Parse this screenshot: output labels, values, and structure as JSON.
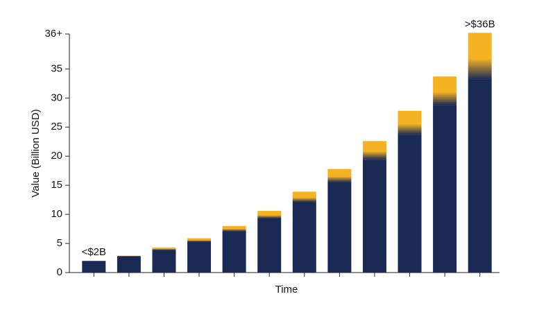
{
  "chart_data": {
    "type": "bar",
    "stacked": true,
    "xlabel": "Time",
    "ylabel": "Value (Billion USD)",
    "categories": [
      null,
      null,
      null,
      null,
      null,
      null,
      null,
      null,
      null,
      null,
      null,
      null
    ],
    "series": [
      {
        "color": "#1b2a55",
        "values": [
          2.0,
          2.8,
          3.9,
          5.3,
          7.1,
          9.3,
          12.1,
          15.5,
          19.4,
          23.7,
          28.8,
          33.2
        ]
      },
      {
        "color": "#f5b324",
        "values": [
          0,
          0.1,
          0.4,
          0.6,
          0.9,
          1.3,
          1.8,
          2.3,
          3.2,
          4.1,
          4.9,
          8.0
        ]
      }
    ],
    "annotations": [
      "<$2B",
      ">$36B"
    ],
    "ylim": [
      0,
      41
    ],
    "yticks": [
      0,
      5,
      10,
      15,
      20,
      25,
      30,
      35,
      {
        "value": 41,
        "label": "36+"
      }
    ],
    "grid": false
  }
}
